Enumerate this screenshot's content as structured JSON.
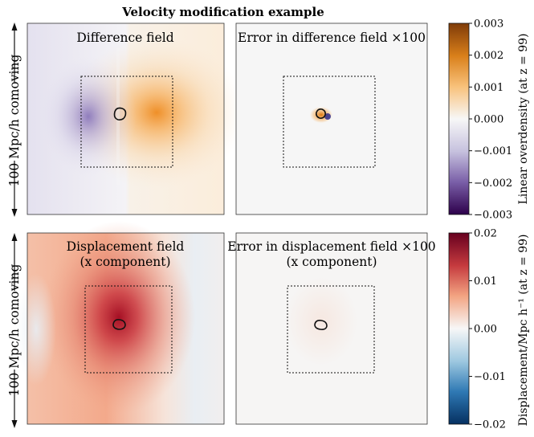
{
  "chart_data": {
    "type": "heatmap",
    "title": "Velocity modification example",
    "side_label": "100 Mpc/h comoving",
    "rows": [
      {
        "colorbar": {
          "label": "Linear overdensity (at z = 99)",
          "ticks": [
            "0.003",
            "0.002",
            "0.001",
            "0.000",
            "−0.001",
            "−0.002",
            "−0.003"
          ],
          "range": [
            -0.003,
            0.003
          ],
          "colors": {
            "low": "#3b0f70",
            "mid": "#f7f7f7",
            "high": "#7f3b08"
          }
        },
        "panels": [
          {
            "title": "Difference field",
            "subtitle": ""
          },
          {
            "title": "Error in difference field ×100",
            "subtitle": ""
          }
        ]
      },
      {
        "colorbar": {
          "label": "Displacement/Mpc h⁻¹ (at z = 99)",
          "ticks": [
            "0.02",
            "0.01",
            "0.00",
            "−0.01",
            "−0.02"
          ],
          "range": [
            -0.02,
            0.02
          ],
          "colors": {
            "low": "#053061",
            "mid": "#f7f7f7",
            "high": "#67001f"
          }
        },
        "panels": [
          {
            "title": "Displacement field",
            "subtitle": "(x component)"
          },
          {
            "title": "Error in displacement field ×100",
            "subtitle": "(x component)"
          }
        ]
      }
    ]
  }
}
